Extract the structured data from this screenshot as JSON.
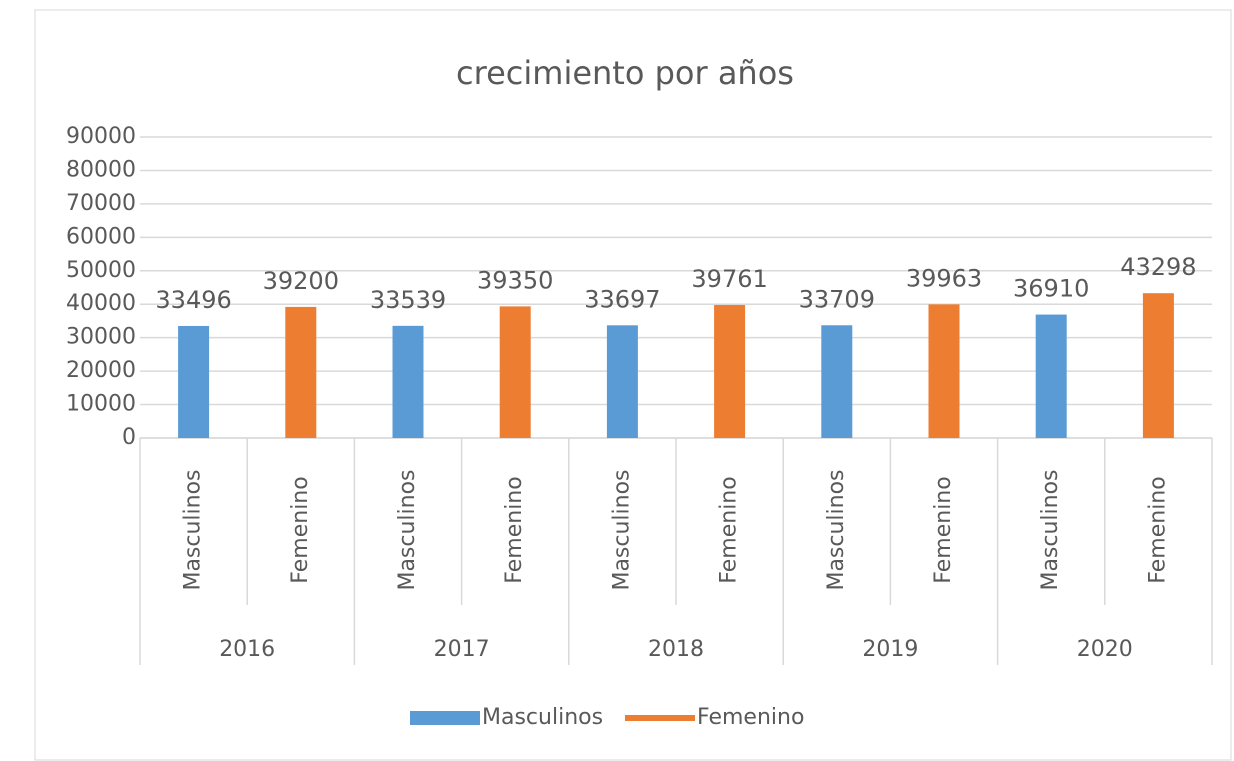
{
  "chart_data": {
    "type": "bar",
    "title": "crecimiento por años",
    "categories": [
      "Masculinos",
      "Femenino",
      "Masculinos",
      "Femenino",
      "Masculinos",
      "Femenino",
      "Masculinos",
      "Femenino",
      "Masculinos",
      "Femenino"
    ],
    "groups": [
      "2016",
      "2017",
      "2018",
      "2019",
      "2020"
    ],
    "series": [
      {
        "name": "Masculinos",
        "color": "#5b9bd5",
        "values": [
          33496,
          null,
          33539,
          null,
          33697,
          null,
          33709,
          null,
          36910,
          null
        ]
      },
      {
        "name": "Femenino",
        "color": "#ed7d31",
        "values": [
          null,
          39200,
          null,
          39350,
          null,
          39761,
          null,
          39963,
          null,
          43298
        ]
      }
    ],
    "ylim": [
      0,
      90000
    ],
    "yticks": [
      0,
      10000,
      20000,
      30000,
      40000,
      50000,
      60000,
      70000,
      80000,
      90000
    ],
    "grid": true,
    "legend": "bottom"
  }
}
